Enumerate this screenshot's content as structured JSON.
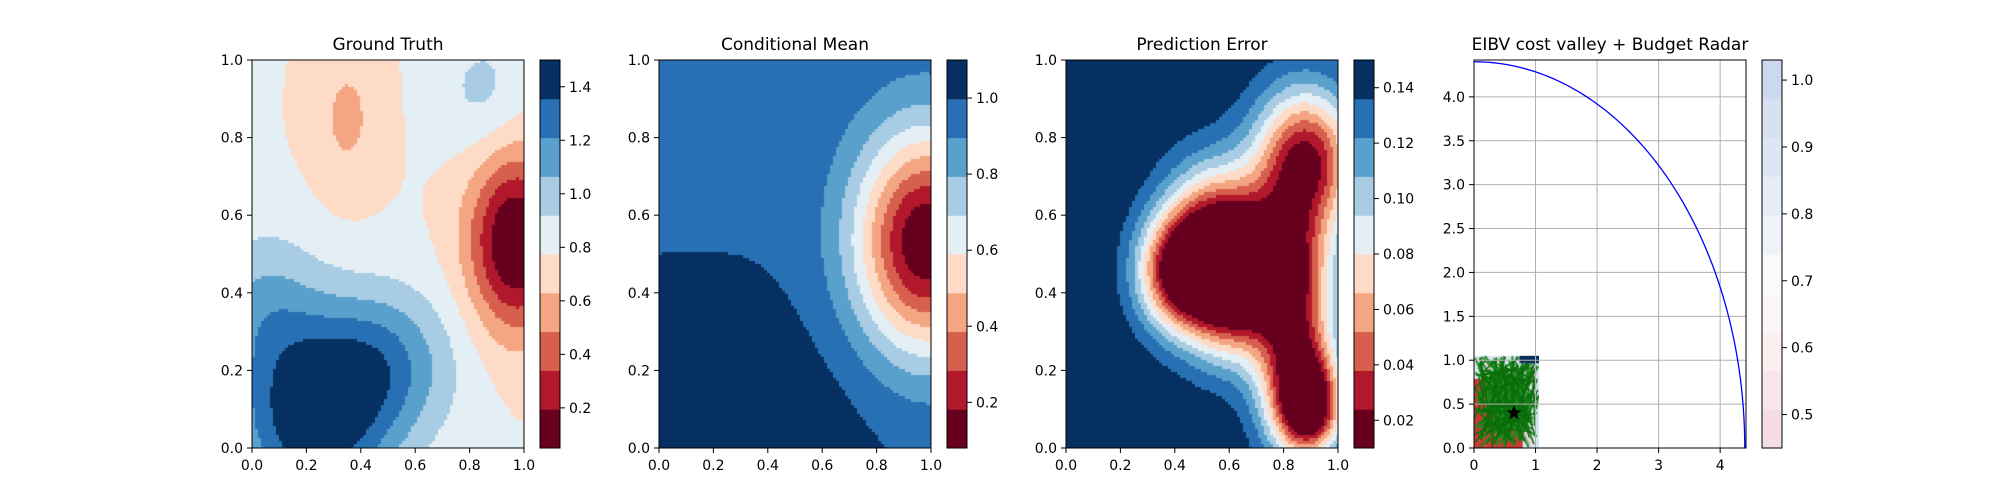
{
  "chart_data": [
    {
      "type": "heatmap",
      "title": "Ground Truth",
      "xlim": [
        0,
        1
      ],
      "ylim": [
        0,
        1
      ],
      "xticks": [
        "0.0",
        "0.2",
        "0.4",
        "0.6",
        "0.8",
        "1.0"
      ],
      "yticks": [
        "0.0",
        "0.2",
        "0.4",
        "0.6",
        "0.8",
        "1.0"
      ],
      "colormap": "RdBu",
      "colorbar": {
        "range": [
          0.05,
          1.5
        ],
        "ticks": [
          "0.2",
          "0.4",
          "0.6",
          "0.8",
          "1.0",
          "1.2",
          "1.4"
        ],
        "tick_values": [
          0.2,
          0.4,
          0.6,
          0.8,
          1.0,
          1.2,
          1.4
        ]
      },
      "field": {
        "base": 0.78,
        "bumps": [
          {
            "x": 0.97,
            "y": 0.53,
            "amp": -0.78,
            "sx": 0.12,
            "sy": 0.16
          },
          {
            "x": 0.35,
            "y": 0.85,
            "amp": -0.18,
            "sx": 0.09,
            "sy": 0.14
          },
          {
            "x": 0.22,
            "y": 0.05,
            "amp": 0.62,
            "sx": 0.2,
            "sy": 0.16
          },
          {
            "x": 0.45,
            "y": 0.22,
            "amp": 0.45,
            "sx": 0.2,
            "sy": 0.14
          },
          {
            "x": 0.05,
            "y": 0.35,
            "amp": 0.3,
            "sx": 0.15,
            "sy": 0.15
          },
          {
            "x": 0.85,
            "y": 0.92,
            "amp": 0.18,
            "sx": 0.12,
            "sy": 0.12
          }
        ]
      }
    },
    {
      "type": "heatmap",
      "title": "Conditional Mean",
      "xlim": [
        0,
        1
      ],
      "ylim": [
        0,
        1
      ],
      "xticks": [
        "0.0",
        "0.2",
        "0.4",
        "0.6",
        "0.8",
        "1.0"
      ],
      "yticks": [
        "0.0",
        "0.2",
        "0.4",
        "0.6",
        "0.8",
        "1.0"
      ],
      "colormap": "RdBu",
      "colorbar": {
        "range": [
          0.08,
          1.1
        ],
        "ticks": [
          "0.2",
          "0.4",
          "0.6",
          "0.8",
          "1.0"
        ],
        "tick_values": [
          0.2,
          0.4,
          0.6,
          0.8,
          1.0
        ]
      },
      "field": {
        "base": 0.98,
        "bumps": [
          {
            "x": 0.98,
            "y": 0.53,
            "amp": -0.9,
            "sx": 0.18,
            "sy": 0.2
          },
          {
            "x": 0.15,
            "y": 0.02,
            "amp": 0.12,
            "sx": 0.45,
            "sy": 0.25
          }
        ]
      }
    },
    {
      "type": "heatmap",
      "title": "Prediction Error",
      "xlim": [
        0,
        1
      ],
      "ylim": [
        0,
        1
      ],
      "xticks": [
        "0.0",
        "0.2",
        "0.4",
        "0.6",
        "0.8",
        "1.0"
      ],
      "yticks": [
        "0.0",
        "0.2",
        "0.4",
        "0.6",
        "0.8",
        "1.0"
      ],
      "colormap": "RdBu",
      "colorbar": {
        "range": [
          0.01,
          0.15
        ],
        "ticks": [
          "0.02",
          "0.04",
          "0.06",
          "0.08",
          "0.10",
          "0.12",
          "0.14"
        ],
        "tick_values": [
          0.02,
          0.04,
          0.06,
          0.08,
          0.1,
          0.12,
          0.14
        ]
      },
      "field": {
        "base": 0.148,
        "bumps": [
          {
            "x": 0.88,
            "y": 0.74,
            "amp": -0.13,
            "sx": 0.13,
            "sy": 0.13
          },
          {
            "x": 0.55,
            "y": 0.54,
            "amp": -0.12,
            "sx": 0.13,
            "sy": 0.13
          },
          {
            "x": 0.4,
            "y": 0.45,
            "amp": -0.1,
            "sx": 0.1,
            "sy": 0.1
          },
          {
            "x": 0.6,
            "y": 0.4,
            "amp": -0.11,
            "sx": 0.12,
            "sy": 0.12
          },
          {
            "x": 0.8,
            "y": 0.47,
            "amp": -0.11,
            "sx": 0.12,
            "sy": 0.12
          },
          {
            "x": 0.85,
            "y": 0.2,
            "amp": -0.12,
            "sx": 0.1,
            "sy": 0.14
          },
          {
            "x": 0.9,
            "y": 0.1,
            "amp": -0.1,
            "sx": 0.08,
            "sy": 0.08
          }
        ]
      }
    },
    {
      "type": "line",
      "title": "EIBV cost valley + Budget Radar",
      "xlim": [
        0,
        4.42
      ],
      "ylim": [
        0,
        4.42
      ],
      "xticks": [
        "0",
        "1",
        "2",
        "3",
        "4"
      ],
      "xtick_values": [
        0,
        1,
        2,
        3,
        4
      ],
      "yticks": [
        "0.0",
        "0.5",
        "1.0",
        "1.5",
        "2.0",
        "2.5",
        "3.0",
        "3.5",
        "4.0"
      ],
      "ytick_values": [
        0,
        0.5,
        1,
        1.5,
        2,
        2.5,
        3,
        3.5,
        4
      ],
      "grid": true,
      "series": [
        {
          "kind": "ellipse-arc",
          "cx": 0,
          "cy": 0,
          "rx": 4.4,
          "ry": 4.4,
          "color": "#0000ff"
        }
      ],
      "inset": {
        "x": [
          0,
          1.05
        ],
        "y": [
          0,
          1.05
        ],
        "marker": {
          "x": 0.65,
          "y": 0.4,
          "symbol": "star"
        }
      },
      "colorbar": {
        "range": [
          0.45,
          1.03
        ],
        "ticks": [
          "0.5",
          "0.6",
          "0.7",
          "0.8",
          "0.9",
          "1.0"
        ],
        "tick_values": [
          0.5,
          0.6,
          0.7,
          0.8,
          0.9,
          1.0
        ],
        "colormap": "RdBu-light"
      }
    }
  ]
}
